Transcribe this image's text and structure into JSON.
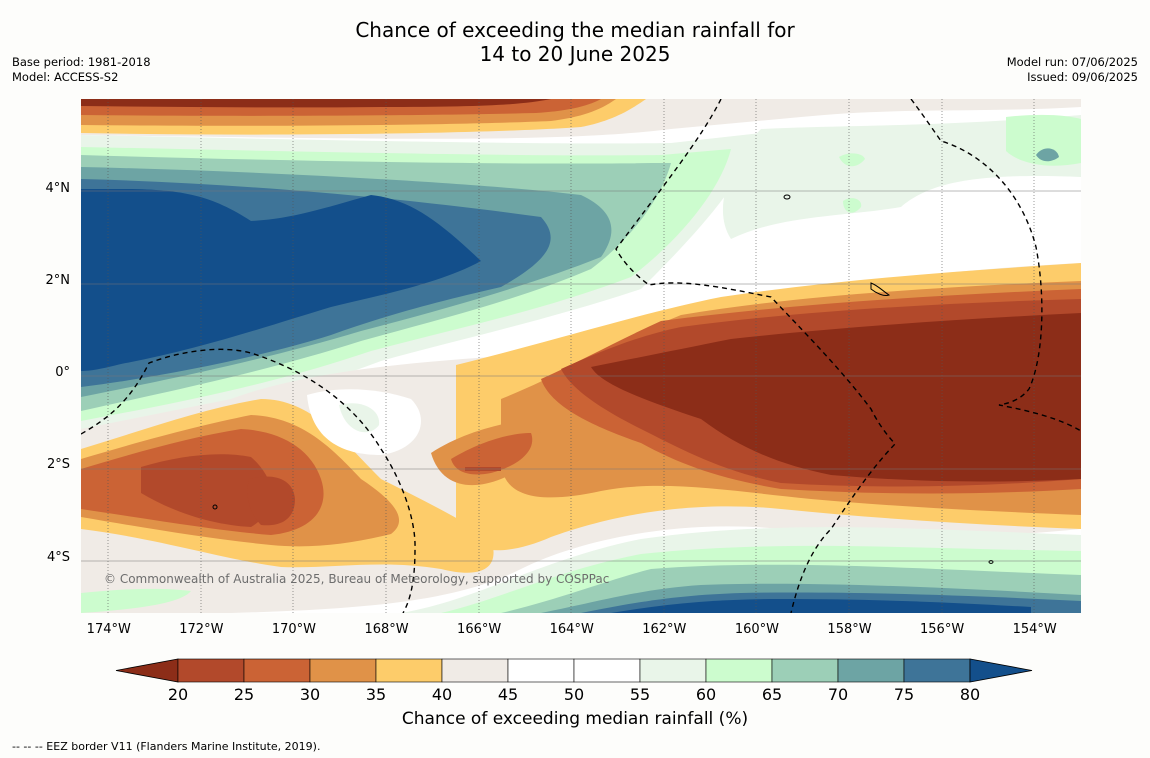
{
  "title": {
    "line1": "Chance of exceeding the median rainfall for",
    "line2": "14 to 20 June 2025"
  },
  "meta": {
    "base_period": "Base period: 1981-2018",
    "model": "Model: ACCESS-S2",
    "model_run": "Model run: 07/06/2025",
    "issued": "Issued: 09/06/2025"
  },
  "map": {
    "copyright": "© Commonwealth of Australia 2025, Bureau of Meteorology, supported by COSPPac",
    "lon_labels": [
      "174°W",
      "172°W",
      "170°W",
      "168°W",
      "166°W",
      "164°W",
      "162°W",
      "160°W",
      "158°W",
      "156°W",
      "154°W"
    ],
    "lat_labels": [
      "4°N",
      "2°N",
      "0°",
      "2°S",
      "4°S"
    ],
    "lon_ticks": [
      -174,
      -172,
      -170,
      -168,
      -166,
      -164,
      -162,
      -160,
      -158,
      -156,
      -154
    ],
    "lat_ticks": [
      4,
      2,
      0,
      -2,
      -4
    ],
    "extent": {
      "lon_min": -174.6,
      "lon_max": -153.0,
      "lat_min": -5.2,
      "lat_max": 5.95
    }
  },
  "colorbar": {
    "title": "Chance of exceeding median rainfall (%)",
    "tick_labels": [
      "20",
      "25",
      "30",
      "35",
      "40",
      "45",
      "50",
      "55",
      "60",
      "65",
      "70",
      "75",
      "80"
    ],
    "colors": {
      "below_20": "#8c2d18",
      "20-25": "#b2492b",
      "25-30": "#cb6335",
      "30-35": "#e09248",
      "35-40": "#fdcc6a",
      "40-45": "#f0ebe6",
      "45-50": "#ffffff",
      "50-55": "#ffffff",
      "55-60": "#e9f5e9",
      "60-65": "#ccfcce",
      "65-70": "#9ccfb7",
      "70-75": "#6da4a4",
      "75-80": "#3e7498",
      "above_80": "#134f8b"
    }
  },
  "footnote": "--  --  -- EEZ border V11 (Flanders Marine Institute, 2019)."
}
